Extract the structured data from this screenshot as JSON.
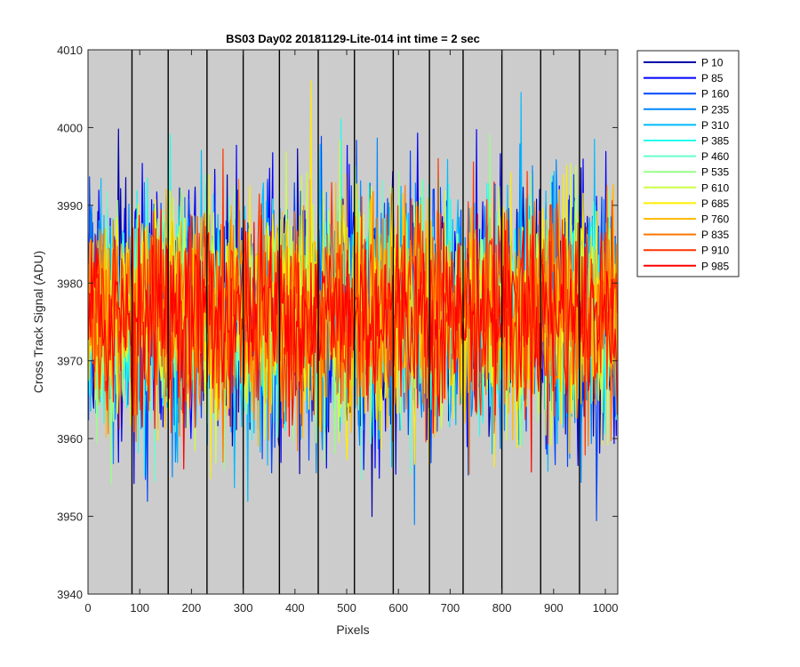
{
  "chart_data": {
    "type": "line",
    "title": "BS03 Day02 20181129-Lite-014 int time = 2 sec",
    "xlabel": "Pixels",
    "ylabel": "Cross Track Signal (ADU)",
    "xlim": [
      0,
      1024
    ],
    "ylim": [
      3940,
      4010
    ],
    "x_ticks": [
      0,
      100,
      200,
      300,
      400,
      500,
      600,
      700,
      800,
      900,
      1000
    ],
    "y_ticks": [
      3940,
      3950,
      3960,
      3970,
      3980,
      3990,
      4000,
      4010
    ],
    "x_tick_labels": [
      "0",
      "100",
      "200",
      "300",
      "400",
      "500",
      "600",
      "700",
      "800",
      "900",
      "1000"
    ],
    "y_tick_labels": [
      "3940",
      "3950",
      "3960",
      "3970",
      "3980",
      "3990",
      "4000",
      "4010"
    ],
    "vertical_lines_x": [
      85,
      155,
      230,
      300,
      370,
      445,
      515,
      590,
      660,
      725,
      800,
      875,
      950
    ],
    "plot_background": "#cccccc",
    "legend_position": "outside-right-top",
    "series": [
      {
        "name": "P 10",
        "color": "#0000a8",
        "mean": 3976,
        "std": 8
      },
      {
        "name": "P 85",
        "color": "#0000ff",
        "mean": 3976,
        "std": 8
      },
      {
        "name": "P 160",
        "color": "#0044ff",
        "mean": 3976,
        "std": 8
      },
      {
        "name": "P 235",
        "color": "#0088ff",
        "mean": 3976,
        "std": 8
      },
      {
        "name": "P 310",
        "color": "#00bbff",
        "mean": 3976,
        "std": 8
      },
      {
        "name": "P 385",
        "color": "#22ffee",
        "mean": 3976,
        "std": 7
      },
      {
        "name": "P 460",
        "color": "#66ffcc",
        "mean": 3976,
        "std": 7
      },
      {
        "name": "P 535",
        "color": "#99ff88",
        "mean": 3976,
        "std": 7
      },
      {
        "name": "P 610",
        "color": "#ccff44",
        "mean": 3976,
        "std": 7
      },
      {
        "name": "P 685",
        "color": "#ffee00",
        "mean": 3976,
        "std": 7
      },
      {
        "name": "P 760",
        "color": "#ffbb00",
        "mean": 3976,
        "std": 7
      },
      {
        "name": "P 835",
        "color": "#ff7700",
        "mean": 3976,
        "std": 7
      },
      {
        "name": "P 910",
        "color": "#ff3300",
        "mean": 3976,
        "std": 7
      },
      {
        "name": "P 985",
        "color": "#ff0000",
        "mean": 3976,
        "std": 6
      }
    ]
  }
}
